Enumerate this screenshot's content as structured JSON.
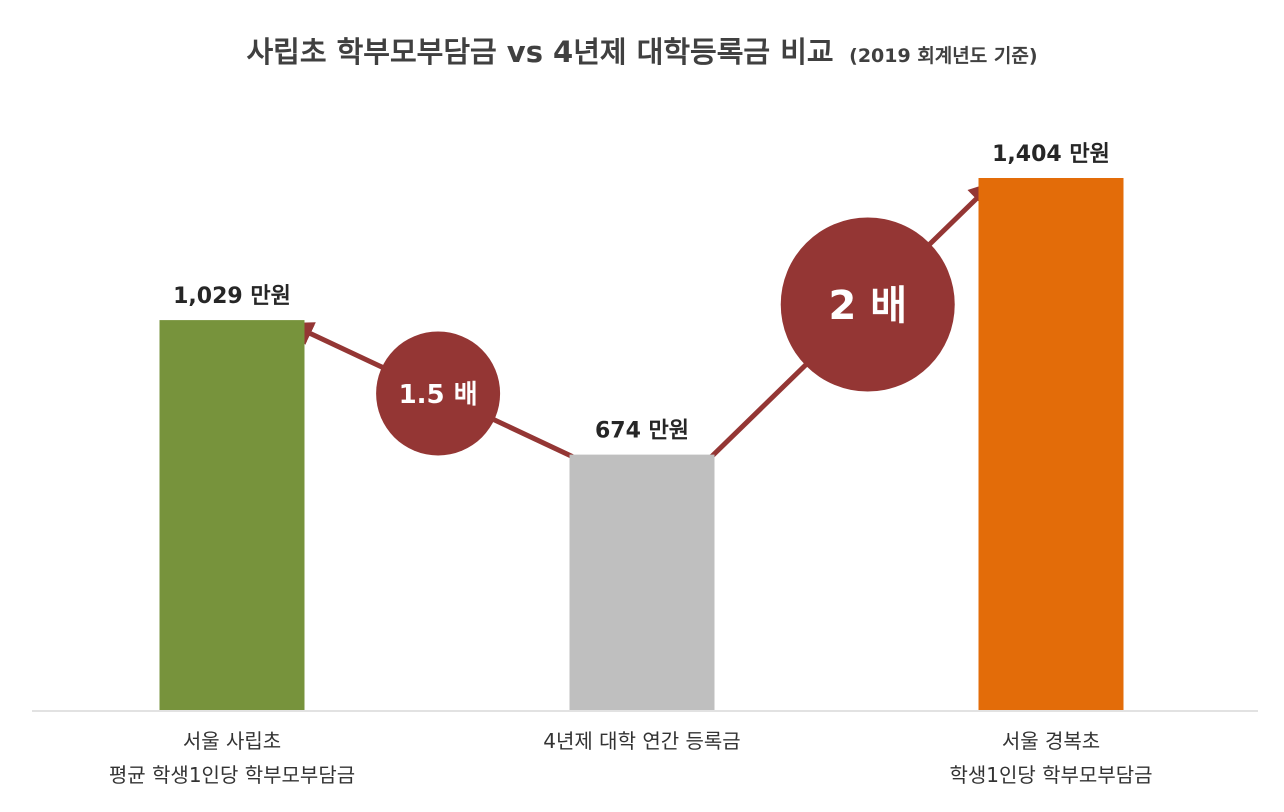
{
  "chart_data": {
    "type": "bar",
    "title": "사립초 학부모부담금 vs 4년제 대학등록금 비교",
    "subtitle": "(2019 회계년도 기준)",
    "unit": "만원",
    "categories": [
      [
        "서울 사립초",
        "평균 학생1인당 학부모부담금"
      ],
      [
        "4년제 대학 연간 등록금"
      ],
      [
        "서울 경복초",
        "학생1인당 학부모부담금"
      ]
    ],
    "values": [
      1029,
      674,
      1404
    ],
    "value_labels": [
      "1,029 만원",
      "674 만원",
      "1,404 만원"
    ],
    "colors": [
      "#77933c",
      "#bfbfbf",
      "#e36c09"
    ],
    "ylim": [
      0,
      1404
    ],
    "grid": false,
    "ratios": [
      {
        "label": "1.5 배",
        "from": 1,
        "to": 0
      },
      {
        "label": "2 배",
        "from": 1,
        "to": 2
      }
    ],
    "ratio_color": "#943634"
  }
}
